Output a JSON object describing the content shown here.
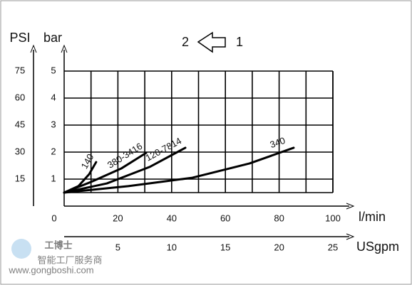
{
  "chart_data": {
    "type": "line",
    "symbol_labels": [
      "2",
      "1"
    ],
    "y_label": "bar",
    "y2_label": "PSI",
    "x_label": "l/min",
    "x2_label": "USgpm",
    "xlim": [
      0,
      100
    ],
    "xticks": [
      0,
      20,
      40,
      60,
      80,
      100
    ],
    "minor_xticks": [
      10,
      30,
      50,
      70,
      90
    ],
    "x2lim": [
      0,
      25
    ],
    "x2ticks": [
      5,
      10,
      15,
      20,
      25
    ],
    "ylim": [
      0.5,
      5
    ],
    "yticks": [
      1,
      2,
      3,
      4,
      5
    ],
    "y2lim": [
      7.5,
      75
    ],
    "y2ticks": [
      15,
      30,
      45,
      60,
      75
    ],
    "grid": true,
    "series": [
      {
        "name": "140",
        "color": "#000000",
        "x": [
          0,
          5.3,
          9.3,
          11.9
        ],
        "values": [
          0.5,
          0.74,
          1.18,
          1.63
        ]
      },
      {
        "name": "380-3416",
        "color": "#000000",
        "x": [
          0,
          10.6,
          21.2,
          30.5
        ],
        "values": [
          0.5,
          0.92,
          1.39,
          1.97
        ]
      },
      {
        "name": "120-7814",
        "color": "#000000",
        "x": [
          0,
          15.9,
          31.8,
          45.1
        ],
        "values": [
          0.5,
          0.84,
          1.45,
          2.16
        ]
      },
      {
        "name": "340",
        "color": "#000000",
        "x": [
          0,
          23.9,
          47.7,
          69,
          85.4
        ],
        "values": [
          0.5,
          0.74,
          1.05,
          1.58,
          2.16
        ]
      }
    ]
  },
  "watermark": {
    "brand": "工博士",
    "slogan": "智能工厂服务商",
    "url": "www.gongboshi.com"
  }
}
